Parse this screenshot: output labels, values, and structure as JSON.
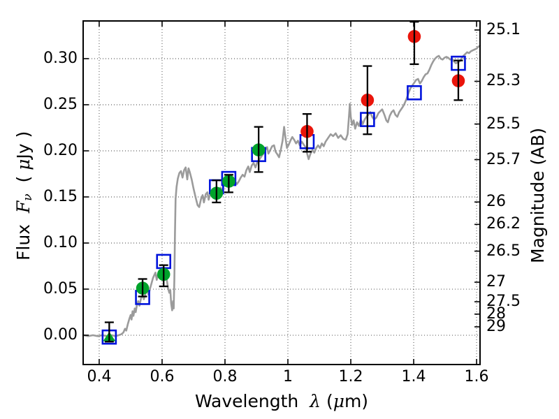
{
  "labels": {
    "xlabel_word": "Wavelength  ",
    "xlabel_lambda": "λ",
    "xlabel_unit_open": " (",
    "xlabel_mu": "μ",
    "xlabel_unit_close": "m)",
    "ylabel_word": "Flux  ",
    "ylabel_F": "F",
    "ylabel_nu": "ν",
    "ylabel_unit_open": "  ( ",
    "ylabel_mu": "μ",
    "ylabel_unit_close": "Jy )",
    "ylabel_right": "Magnitude (AB)"
  },
  "colors": {
    "spectrum": "#9b9b9b",
    "green_points": "#00a32b",
    "red_points": "#ea150b",
    "blue_squares": "#0013dc",
    "errorbars": "#000000",
    "axes": "#000000"
  },
  "chart_data": {
    "type": "line+scatter",
    "title": "",
    "xlabel": "Wavelength λ (μm)",
    "ylabel_left": "Flux Fν (μJy)",
    "ylabel_right": "Magnitude (AB)",
    "grid": "dotted",
    "legend": "none",
    "xlim": [
      0.349,
      1.611
    ],
    "ylim_flux": [
      -0.0318,
      0.3409
    ],
    "x_ticks": [
      {
        "label": "0.4",
        "value": 0.4
      },
      {
        "label": "0.6",
        "value": 0.6
      },
      {
        "label": "0.8",
        "value": 0.8
      },
      {
        "label": "1",
        "value": 1.0
      },
      {
        "label": "1.2",
        "value": 1.2
      },
      {
        "label": "1.4",
        "value": 1.4
      },
      {
        "label": "1.6",
        "value": 1.6
      }
    ],
    "y_ticks_left": [
      {
        "label": "0.00",
        "value": 0.0
      },
      {
        "label": "0.05",
        "value": 0.05
      },
      {
        "label": "0.10",
        "value": 0.1
      },
      {
        "label": "0.15",
        "value": 0.15
      },
      {
        "label": "0.20",
        "value": 0.2
      },
      {
        "label": "0.25",
        "value": 0.25
      },
      {
        "label": "0.30",
        "value": 0.3
      }
    ],
    "y_ticks_right": [
      {
        "label": "25.1",
        "flux": 0.3311
      },
      {
        "label": "25.3",
        "flux": 0.2754
      },
      {
        "label": "25.5",
        "flux": 0.2291
      },
      {
        "label": "25.7",
        "flux": 0.1905
      },
      {
        "label": "26",
        "flux": 0.1445
      },
      {
        "label": "26.2",
        "flux": 0.1202
      },
      {
        "label": "26.5",
        "flux": 0.0912
      },
      {
        "label": "27",
        "flux": 0.0575
      },
      {
        "label": "27.5",
        "flux": 0.0363
      },
      {
        "label": "28",
        "flux": 0.0229
      },
      {
        "label": "29",
        "flux": 0.0091
      }
    ],
    "series": [
      {
        "name": "model-spectrum",
        "type": "line",
        "color": "#9b9b9b",
        "points": [
          [
            0.349,
            0.0
          ],
          [
            0.365,
            -0.001
          ],
          [
            0.38,
            0.0
          ],
          [
            0.395,
            -0.001
          ],
          [
            0.41,
            0.0
          ],
          [
            0.425,
            -0.001
          ],
          [
            0.44,
            0.0
          ],
          [
            0.452,
            -0.001
          ],
          [
            0.462,
            0.0
          ],
          [
            0.47,
            0.001
          ],
          [
            0.477,
            0.003
          ],
          [
            0.482,
            0.007
          ],
          [
            0.486,
            0.005
          ],
          [
            0.491,
            0.012
          ],
          [
            0.496,
            0.018
          ],
          [
            0.5,
            0.022
          ],
          [
            0.503,
            0.017
          ],
          [
            0.506,
            0.026
          ],
          [
            0.509,
            0.021
          ],
          [
            0.513,
            0.029
          ],
          [
            0.516,
            0.025
          ],
          [
            0.52,
            0.033
          ],
          [
            0.524,
            0.037
          ],
          [
            0.528,
            0.032
          ],
          [
            0.533,
            0.04
          ],
          [
            0.538,
            0.044
          ],
          [
            0.542,
            0.039
          ],
          [
            0.548,
            0.046
          ],
          [
            0.553,
            0.049
          ],
          [
            0.557,
            0.044
          ],
          [
            0.562,
            0.051
          ],
          [
            0.567,
            0.057
          ],
          [
            0.571,
            0.062
          ],
          [
            0.575,
            0.065
          ],
          [
            0.579,
            0.068
          ],
          [
            0.583,
            0.06
          ],
          [
            0.587,
            0.066
          ],
          [
            0.591,
            0.07
          ],
          [
            0.595,
            0.066
          ],
          [
            0.599,
            0.062
          ],
          [
            0.603,
            0.066
          ],
          [
            0.607,
            0.061
          ],
          [
            0.611,
            0.063
          ],
          [
            0.615,
            0.06
          ],
          [
            0.619,
            0.051
          ],
          [
            0.623,
            0.046
          ],
          [
            0.626,
            0.049
          ],
          [
            0.629,
            0.034
          ],
          [
            0.632,
            0.027
          ],
          [
            0.635,
            0.037
          ],
          [
            0.637,
            0.029
          ],
          [
            0.639,
            0.06
          ],
          [
            0.641,
            0.11
          ],
          [
            0.643,
            0.148
          ],
          [
            0.646,
            0.161
          ],
          [
            0.65,
            0.17
          ],
          [
            0.655,
            0.176
          ],
          [
            0.66,
            0.178
          ],
          [
            0.665,
            0.171
          ],
          [
            0.67,
            0.179
          ],
          [
            0.675,
            0.182
          ],
          [
            0.68,
            0.169
          ],
          [
            0.684,
            0.181
          ],
          [
            0.688,
            0.177
          ],
          [
            0.694,
            0.169
          ],
          [
            0.7,
            0.159
          ],
          [
            0.707,
            0.149
          ],
          [
            0.713,
            0.141
          ],
          [
            0.718,
            0.139
          ],
          [
            0.724,
            0.148
          ],
          [
            0.729,
            0.152
          ],
          [
            0.733,
            0.144
          ],
          [
            0.739,
            0.153
          ],
          [
            0.744,
            0.155
          ],
          [
            0.748,
            0.147
          ],
          [
            0.754,
            0.154
          ],
          [
            0.76,
            0.158
          ],
          [
            0.765,
            0.151
          ],
          [
            0.77,
            0.156
          ],
          [
            0.776,
            0.158
          ],
          [
            0.781,
            0.153
          ],
          [
            0.786,
            0.16
          ],
          [
            0.791,
            0.157
          ],
          [
            0.796,
            0.162
          ],
          [
            0.802,
            0.164
          ],
          [
            0.808,
            0.168
          ],
          [
            0.814,
            0.17
          ],
          [
            0.82,
            0.166
          ],
          [
            0.826,
            0.171
          ],
          [
            0.831,
            0.167
          ],
          [
            0.838,
            0.164
          ],
          [
            0.844,
            0.167
          ],
          [
            0.85,
            0.171
          ],
          [
            0.856,
            0.174
          ],
          [
            0.862,
            0.172
          ],
          [
            0.868,
            0.179
          ],
          [
            0.874,
            0.183
          ],
          [
            0.879,
            0.177
          ],
          [
            0.885,
            0.184
          ],
          [
            0.891,
            0.187
          ],
          [
            0.897,
            0.182
          ],
          [
            0.903,
            0.188
          ],
          [
            0.91,
            0.191
          ],
          [
            0.916,
            0.194
          ],
          [
            0.922,
            0.197
          ],
          [
            0.928,
            0.201
          ],
          [
            0.934,
            0.204
          ],
          [
            0.938,
            0.197
          ],
          [
            0.944,
            0.201
          ],
          [
            0.95,
            0.205
          ],
          [
            0.956,
            0.206
          ],
          [
            0.961,
            0.199
          ],
          [
            0.967,
            0.196
          ],
          [
            0.972,
            0.193
          ],
          [
            0.978,
            0.202
          ],
          [
            0.983,
            0.211
          ],
          [
            0.988,
            0.226
          ],
          [
            0.992,
            0.215
          ],
          [
            0.997,
            0.203
          ],
          [
            1.003,
            0.207
          ],
          [
            1.008,
            0.211
          ],
          [
            1.014,
            0.215
          ],
          [
            1.02,
            0.212
          ],
          [
            1.026,
            0.208
          ],
          [
            1.032,
            0.211
          ],
          [
            1.038,
            0.206
          ],
          [
            1.044,
            0.21
          ],
          [
            1.05,
            0.207
          ],
          [
            1.056,
            0.204
          ],
          [
            1.062,
            0.196
          ],
          [
            1.066,
            0.191
          ],
          [
            1.072,
            0.197
          ],
          [
            1.078,
            0.201
          ],
          [
            1.084,
            0.198
          ],
          [
            1.09,
            0.203
          ],
          [
            1.096,
            0.206
          ],
          [
            1.102,
            0.203
          ],
          [
            1.108,
            0.208
          ],
          [
            1.114,
            0.205
          ],
          [
            1.12,
            0.21
          ],
          [
            1.128,
            0.214
          ],
          [
            1.136,
            0.218
          ],
          [
            1.144,
            0.216
          ],
          [
            1.152,
            0.219
          ],
          [
            1.16,
            0.214
          ],
          [
            1.168,
            0.217
          ],
          [
            1.176,
            0.213
          ],
          [
            1.184,
            0.212
          ],
          [
            1.19,
            0.218
          ],
          [
            1.194,
            0.236
          ],
          [
            1.197,
            0.251
          ],
          [
            1.2,
            0.237
          ],
          [
            1.204,
            0.228
          ],
          [
            1.209,
            0.233
          ],
          [
            1.214,
            0.224
          ],
          [
            1.22,
            0.231
          ],
          [
            1.226,
            0.227
          ],
          [
            1.232,
            0.234
          ],
          [
            1.238,
            0.229
          ],
          [
            1.244,
            0.234
          ],
          [
            1.25,
            0.237
          ],
          [
            1.256,
            0.239
          ],
          [
            1.262,
            0.242
          ],
          [
            1.268,
            0.237
          ],
          [
            1.274,
            0.234
          ],
          [
            1.281,
            0.236
          ],
          [
            1.288,
            0.241
          ],
          [
            1.294,
            0.243
          ],
          [
            1.3,
            0.245
          ],
          [
            1.307,
            0.239
          ],
          [
            1.313,
            0.233
          ],
          [
            1.318,
            0.231
          ],
          [
            1.324,
            0.238
          ],
          [
            1.33,
            0.242
          ],
          [
            1.336,
            0.244
          ],
          [
            1.342,
            0.239
          ],
          [
            1.348,
            0.237
          ],
          [
            1.354,
            0.242
          ],
          [
            1.36,
            0.245
          ],
          [
            1.366,
            0.248
          ],
          [
            1.372,
            0.252
          ],
          [
            1.378,
            0.257
          ],
          [
            1.384,
            0.263
          ],
          [
            1.39,
            0.268
          ],
          [
            1.396,
            0.271
          ],
          [
            1.402,
            0.274
          ],
          [
            1.408,
            0.277
          ],
          [
            1.414,
            0.278
          ],
          [
            1.42,
            0.273
          ],
          [
            1.426,
            0.276
          ],
          [
            1.432,
            0.28
          ],
          [
            1.438,
            0.283
          ],
          [
            1.444,
            0.284
          ],
          [
            1.45,
            0.288
          ],
          [
            1.456,
            0.293
          ],
          [
            1.462,
            0.297
          ],
          [
            1.468,
            0.3
          ],
          [
            1.474,
            0.302
          ],
          [
            1.48,
            0.303
          ],
          [
            1.486,
            0.3
          ],
          [
            1.492,
            0.299
          ],
          [
            1.498,
            0.301
          ],
          [
            1.504,
            0.302
          ],
          [
            1.51,
            0.301
          ],
          [
            1.516,
            0.299
          ],
          [
            1.522,
            0.3
          ],
          [
            1.528,
            0.297
          ],
          [
            1.534,
            0.295
          ],
          [
            1.54,
            0.296
          ],
          [
            1.546,
            0.297
          ],
          [
            1.552,
            0.3
          ],
          [
            1.558,
            0.303
          ],
          [
            1.564,
            0.305
          ],
          [
            1.57,
            0.307
          ],
          [
            1.576,
            0.306
          ],
          [
            1.582,
            0.308
          ],
          [
            1.588,
            0.309
          ],
          [
            1.594,
            0.31
          ],
          [
            1.6,
            0.311
          ],
          [
            1.606,
            0.313
          ],
          [
            1.611,
            0.314
          ]
        ]
      },
      {
        "name": "blue-model-photometry",
        "type": "scatter",
        "marker": "square-open",
        "color": "#0013dc",
        "points": [
          {
            "x": 0.432,
            "y": -0.002
          },
          {
            "x": 0.538,
            "y": 0.041
          },
          {
            "x": 0.605,
            "y": 0.08
          },
          {
            "x": 0.773,
            "y": 0.161
          },
          {
            "x": 0.812,
            "y": 0.17
          },
          {
            "x": 0.907,
            "y": 0.196
          },
          {
            "x": 1.061,
            "y": 0.21
          },
          {
            "x": 1.253,
            "y": 0.234
          },
          {
            "x": 1.402,
            "y": 0.263
          },
          {
            "x": 1.542,
            "y": 0.295
          }
        ]
      },
      {
        "name": "green-upper-limit",
        "type": "scatter",
        "marker": "triangle-up",
        "color": "#00a32b",
        "points": [
          {
            "x": 0.432,
            "y": -0.002,
            "ylo": -0.007,
            "yhi": 0.014
          }
        ]
      },
      {
        "name": "green-observed-photometry",
        "type": "scatter",
        "marker": "circle",
        "color": "#00a32b",
        "points": [
          {
            "x": 0.538,
            "y": 0.051,
            "ylo": 0.042,
            "yhi": 0.061
          },
          {
            "x": 0.605,
            "y": 0.066,
            "ylo": 0.053,
            "yhi": 0.076
          },
          {
            "x": 0.773,
            "y": 0.154,
            "ylo": 0.144,
            "yhi": 0.168
          },
          {
            "x": 0.812,
            "y": 0.167,
            "ylo": 0.155,
            "yhi": 0.174
          },
          {
            "x": 0.907,
            "y": 0.201,
            "ylo": 0.177,
            "yhi": 0.226
          }
        ]
      },
      {
        "name": "red-observed-photometry",
        "type": "scatter",
        "marker": "circle",
        "color": "#ea150b",
        "points": [
          {
            "x": 1.061,
            "y": 0.221,
            "ylo": 0.199,
            "yhi": 0.24
          },
          {
            "x": 1.253,
            "y": 0.255,
            "ylo": 0.218,
            "yhi": 0.292
          },
          {
            "x": 1.402,
            "y": 0.324,
            "ylo": 0.294,
            "yhi": 0.34
          },
          {
            "x": 1.542,
            "y": 0.276,
            "ylo": 0.255,
            "yhi": 0.298
          }
        ]
      }
    ]
  }
}
